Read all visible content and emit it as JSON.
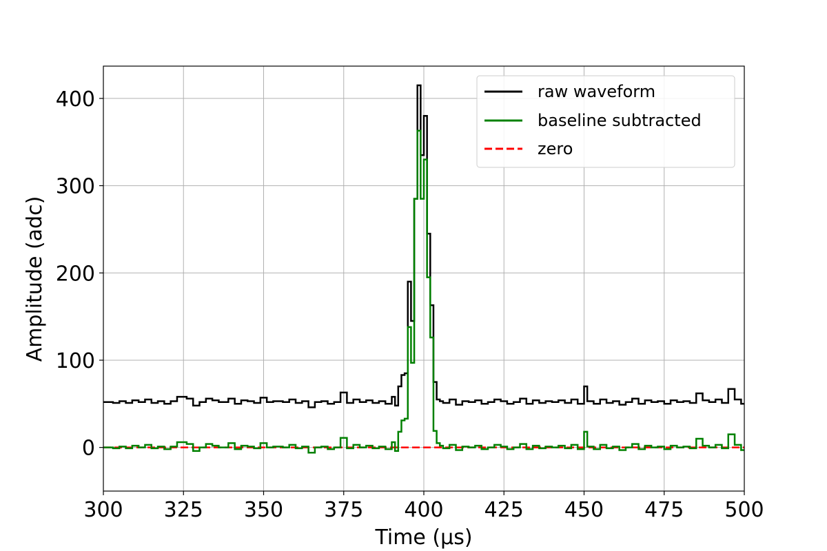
{
  "chart_data": {
    "type": "line",
    "xlabel": "Time (μs)",
    "ylabel": "Amplitude (adc)",
    "xlim": [
      300,
      500
    ],
    "ylim": [
      -50,
      437
    ],
    "xticks": [
      300,
      325,
      350,
      375,
      400,
      425,
      450,
      475,
      500
    ],
    "yticks": [
      0,
      100,
      200,
      300,
      400
    ],
    "grid": true,
    "legend_position": "top-right",
    "step_width": 1,
    "series": [
      {
        "name": "raw waveform",
        "color": "#000000",
        "style": "step",
        "points": [
          [
            300,
            52
          ],
          [
            303,
            51
          ],
          [
            305,
            53
          ],
          [
            307,
            51
          ],
          [
            309,
            54
          ],
          [
            311,
            52
          ],
          [
            313,
            55
          ],
          [
            315,
            51
          ],
          [
            317,
            53
          ],
          [
            319,
            50
          ],
          [
            321,
            53
          ],
          [
            323,
            58
          ],
          [
            326,
            56
          ],
          [
            328,
            48
          ],
          [
            330,
            52
          ],
          [
            332,
            56
          ],
          [
            334,
            54
          ],
          [
            336,
            52
          ],
          [
            339,
            56
          ],
          [
            341,
            50
          ],
          [
            343,
            54
          ],
          [
            345,
            53
          ],
          [
            347,
            51
          ],
          [
            349,
            57
          ],
          [
            351,
            52
          ],
          [
            353,
            53
          ],
          [
            356,
            52
          ],
          [
            358,
            55
          ],
          [
            360,
            51
          ],
          [
            362,
            53
          ],
          [
            364,
            46
          ],
          [
            366,
            52
          ],
          [
            368,
            53
          ],
          [
            370,
            50
          ],
          [
            372,
            52
          ],
          [
            374,
            63
          ],
          [
            376,
            51
          ],
          [
            378,
            55
          ],
          [
            380,
            52
          ],
          [
            382,
            54
          ],
          [
            384,
            51
          ],
          [
            386,
            53
          ],
          [
            388,
            50
          ],
          [
            390,
            58
          ],
          [
            391,
            48
          ],
          [
            392,
            70
          ],
          [
            393,
            83
          ],
          [
            394,
            85
          ],
          [
            395,
            190
          ],
          [
            396,
            145
          ],
          [
            397,
            285
          ],
          [
            398,
            415
          ],
          [
            399,
            335
          ],
          [
            400,
            380
          ],
          [
            401,
            245
          ],
          [
            402,
            163
          ],
          [
            403,
            75
          ],
          [
            404,
            55
          ],
          [
            405,
            53
          ],
          [
            406,
            51
          ],
          [
            408,
            55
          ],
          [
            410,
            49
          ],
          [
            412,
            53
          ],
          [
            414,
            52
          ],
          [
            416,
            54
          ],
          [
            418,
            50
          ],
          [
            420,
            52
          ],
          [
            422,
            55
          ],
          [
            424,
            53
          ],
          [
            426,
            50
          ],
          [
            428,
            52
          ],
          [
            430,
            56
          ],
          [
            432,
            50
          ],
          [
            434,
            54
          ],
          [
            436,
            51
          ],
          [
            438,
            53
          ],
          [
            440,
            52
          ],
          [
            442,
            54
          ],
          [
            444,
            51
          ],
          [
            446,
            55
          ],
          [
            448,
            50
          ],
          [
            450,
            70
          ],
          [
            451,
            53
          ],
          [
            453,
            50
          ],
          [
            455,
            55
          ],
          [
            457,
            51
          ],
          [
            459,
            53
          ],
          [
            461,
            49
          ],
          [
            463,
            52
          ],
          [
            465,
            56
          ],
          [
            467,
            50
          ],
          [
            469,
            54
          ],
          [
            471,
            52
          ],
          [
            473,
            53
          ],
          [
            475,
            50
          ],
          [
            477,
            54
          ],
          [
            479,
            52
          ],
          [
            481,
            53
          ],
          [
            483,
            51
          ],
          [
            485,
            62
          ],
          [
            487,
            54
          ],
          [
            489,
            52
          ],
          [
            491,
            55
          ],
          [
            493,
            51
          ],
          [
            495,
            67
          ],
          [
            497,
            55
          ],
          [
            499,
            50
          ],
          [
            500,
            50
          ]
        ]
      },
      {
        "name": "baseline subtracted",
        "color": "#008000",
        "style": "step",
        "points": [
          [
            300,
            0
          ],
          [
            303,
            -1
          ],
          [
            305,
            1
          ],
          [
            307,
            -1
          ],
          [
            309,
            2
          ],
          [
            311,
            0
          ],
          [
            313,
            3
          ],
          [
            315,
            -1
          ],
          [
            317,
            1
          ],
          [
            319,
            -2
          ],
          [
            321,
            1
          ],
          [
            323,
            6
          ],
          [
            326,
            4
          ],
          [
            328,
            -4
          ],
          [
            330,
            0
          ],
          [
            332,
            4
          ],
          [
            334,
            2
          ],
          [
            336,
            0
          ],
          [
            339,
            5
          ],
          [
            341,
            -2
          ],
          [
            343,
            2
          ],
          [
            345,
            1
          ],
          [
            347,
            -1
          ],
          [
            349,
            5
          ],
          [
            351,
            0
          ],
          [
            353,
            1
          ],
          [
            356,
            0
          ],
          [
            358,
            3
          ],
          [
            360,
            -1
          ],
          [
            362,
            1
          ],
          [
            364,
            -6
          ],
          [
            366,
            0
          ],
          [
            368,
            1
          ],
          [
            370,
            -2
          ],
          [
            372,
            0
          ],
          [
            374,
            11
          ],
          [
            376,
            -1
          ],
          [
            378,
            3
          ],
          [
            380,
            0
          ],
          [
            382,
            2
          ],
          [
            384,
            -1
          ],
          [
            386,
            1
          ],
          [
            388,
            -2
          ],
          [
            390,
            6
          ],
          [
            391,
            -4
          ],
          [
            392,
            18
          ],
          [
            393,
            31
          ],
          [
            394,
            33
          ],
          [
            395,
            138
          ],
          [
            396,
            97
          ],
          [
            397,
            285
          ],
          [
            398,
            363
          ],
          [
            399,
            285
          ],
          [
            400,
            330
          ],
          [
            401,
            195
          ],
          [
            402,
            126
          ],
          [
            403,
            19
          ],
          [
            404,
            5
          ],
          [
            405,
            2
          ],
          [
            406,
            -1
          ],
          [
            408,
            3
          ],
          [
            410,
            -3
          ],
          [
            412,
            1
          ],
          [
            414,
            0
          ],
          [
            416,
            2
          ],
          [
            418,
            -2
          ],
          [
            420,
            0
          ],
          [
            422,
            3
          ],
          [
            424,
            1
          ],
          [
            426,
            -2
          ],
          [
            428,
            0
          ],
          [
            430,
            4
          ],
          [
            432,
            -2
          ],
          [
            434,
            2
          ],
          [
            436,
            -1
          ],
          [
            438,
            1
          ],
          [
            440,
            0
          ],
          [
            442,
            2
          ],
          [
            444,
            -1
          ],
          [
            446,
            3
          ],
          [
            448,
            -2
          ],
          [
            450,
            18
          ],
          [
            451,
            1
          ],
          [
            453,
            -2
          ],
          [
            455,
            3
          ],
          [
            457,
            -1
          ],
          [
            459,
            1
          ],
          [
            461,
            -3
          ],
          [
            463,
            0
          ],
          [
            465,
            4
          ],
          [
            467,
            -2
          ],
          [
            469,
            2
          ],
          [
            471,
            0
          ],
          [
            473,
            1
          ],
          [
            475,
            -2
          ],
          [
            477,
            2
          ],
          [
            479,
            0
          ],
          [
            481,
            1
          ],
          [
            483,
            -1
          ],
          [
            485,
            10
          ],
          [
            487,
            2
          ],
          [
            489,
            0
          ],
          [
            491,
            3
          ],
          [
            493,
            -1
          ],
          [
            495,
            15
          ],
          [
            497,
            3
          ],
          [
            499,
            -3
          ],
          [
            500,
            -3
          ]
        ]
      },
      {
        "name": "zero",
        "color": "#ff0000",
        "style": "dashed",
        "points": [
          [
            300,
            0
          ],
          [
            500,
            0
          ]
        ]
      }
    ]
  }
}
